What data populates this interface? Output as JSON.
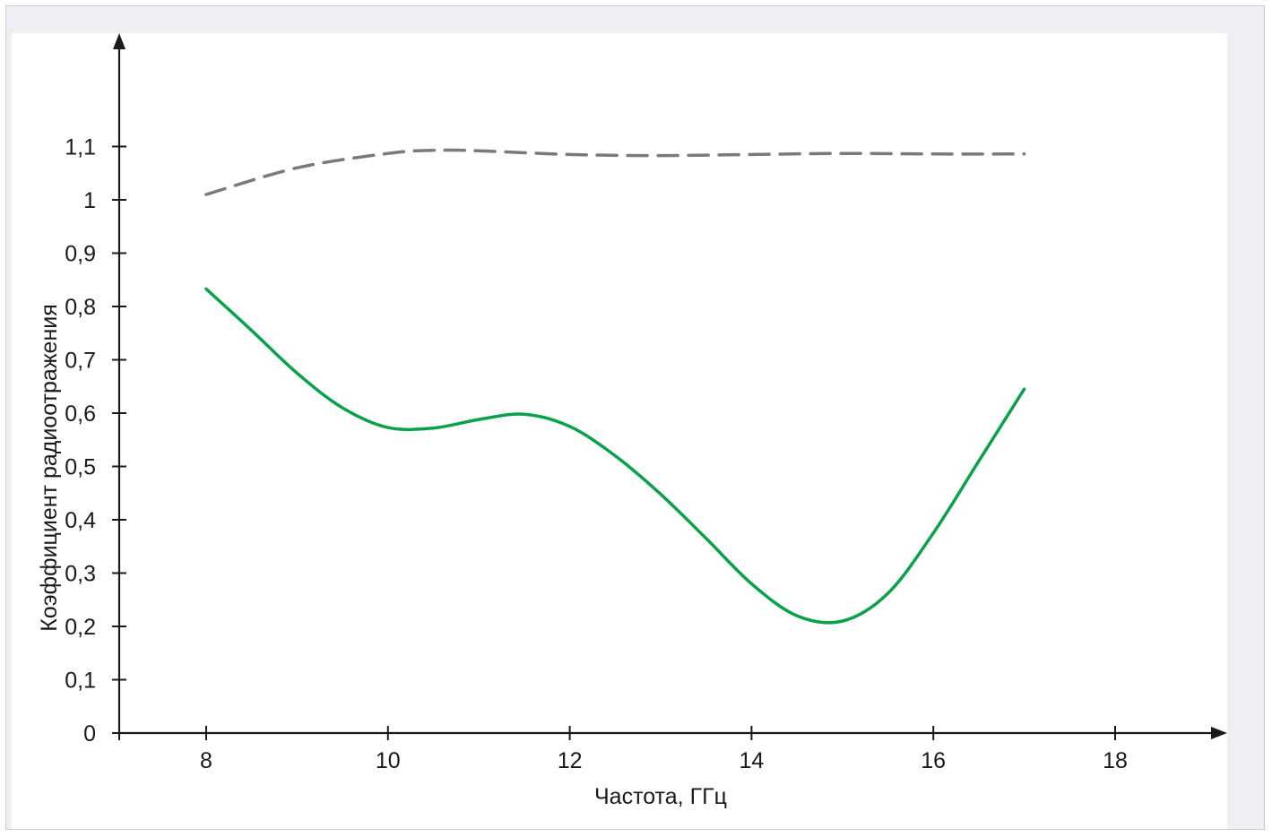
{
  "colors": {
    "frame_background": "#eeeef3",
    "plot_background": "#ffffff",
    "axis": "#1a1a1a",
    "series_dashed": "#7a7a7a",
    "series_solid": "#0aa14b"
  },
  "chart_data": {
    "type": "line",
    "title": "",
    "xlabel": "Частота, ГГц",
    "ylabel": "Коэффициент радиоотражения",
    "xlim": [
      7,
      19.2
    ],
    "ylim": [
      0,
      1.31
    ],
    "x_ticks": [
      8,
      10,
      12,
      14,
      16,
      18
    ],
    "x_tick_labels": [
      "8",
      "10",
      "12",
      "14",
      "16",
      "18"
    ],
    "y_ticks": [
      0,
      0.1,
      0.2,
      0.3,
      0.4,
      0.5,
      0.6,
      0.7,
      0.8,
      0.9,
      1.0,
      1.1
    ],
    "y_tick_labels": [
      "0",
      "0,1",
      "0,2",
      "0,3",
      "0,4",
      "0,5",
      "0,6",
      "0,7",
      "0,8",
      "0,9",
      "1",
      "1,1"
    ],
    "grid": false,
    "legend": "none",
    "series": [
      {
        "style": "dashed",
        "color": "#7a7a7a",
        "x": [
          8.0,
          9.0,
          10.0,
          10.5,
          11.0,
          12.0,
          13.0,
          14.0,
          15.0,
          16.0,
          17.0
        ],
        "y": [
          1.01,
          1.06,
          1.087,
          1.093,
          1.092,
          1.085,
          1.083,
          1.085,
          1.087,
          1.086,
          1.086
        ]
      },
      {
        "style": "solid",
        "color": "#0aa14b",
        "x": [
          8.0,
          8.5,
          9.0,
          9.5,
          10.0,
          10.5,
          11.0,
          11.5,
          12.0,
          12.5,
          13.0,
          13.5,
          14.0,
          14.5,
          15.0,
          15.5,
          16.0,
          16.5,
          17.0
        ],
        "y": [
          0.833,
          0.755,
          0.675,
          0.61,
          0.573,
          0.572,
          0.588,
          0.598,
          0.575,
          0.52,
          0.448,
          0.365,
          0.28,
          0.22,
          0.21,
          0.262,
          0.375,
          0.51,
          0.645
        ]
      }
    ]
  }
}
